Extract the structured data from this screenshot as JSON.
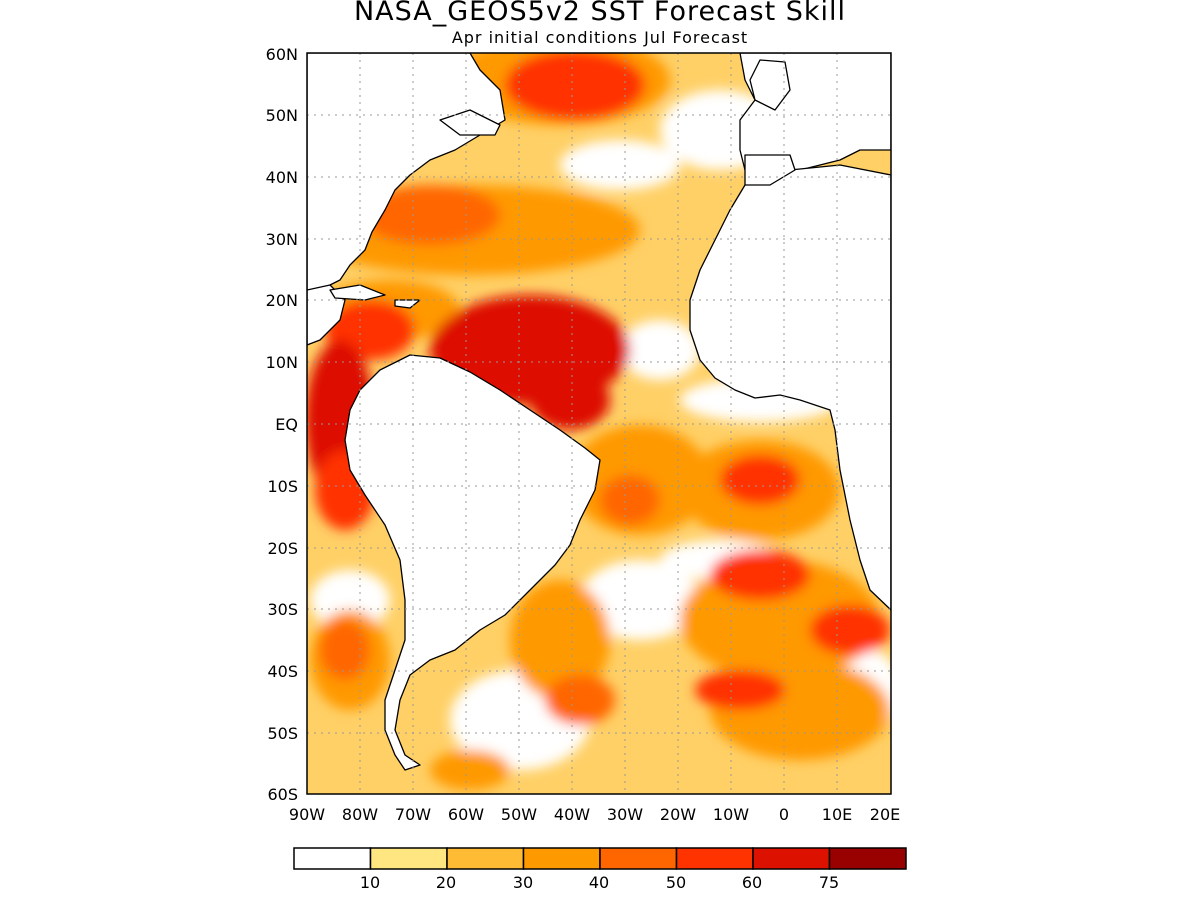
{
  "title": "NASA_GEOS5v2  SST  Forecast  Skill",
  "subtitle": "Apr initial conditions   Jul Forecast",
  "map": {
    "region": "Atlantic Ocean",
    "lon_range": [
      -90,
      20
    ],
    "lat_range": [
      -60,
      60
    ],
    "lat_labels": [
      "60N",
      "50N",
      "40N",
      "30N",
      "20N",
      "10N",
      "EQ",
      "10S",
      "20S",
      "30S",
      "40S",
      "50S",
      "60S"
    ],
    "lon_labels": [
      "90W",
      "80W",
      "70W",
      "60W",
      "50W",
      "40W",
      "30W",
      "20W",
      "10W",
      "0",
      "10E",
      "20E"
    ],
    "grid": "dotted"
  },
  "legend": {
    "labels": [
      "10",
      "20",
      "30",
      "40",
      "50",
      "60",
      "75"
    ],
    "colors": [
      "#ffffff",
      "#ffe680",
      "#ffbb33",
      "#ff9900",
      "#ff6600",
      "#ff3300",
      "#dd1100",
      "#990000"
    ]
  },
  "palette": {
    "land": "#ffffff",
    "coast": "#000000",
    "frame": "#000000"
  }
}
